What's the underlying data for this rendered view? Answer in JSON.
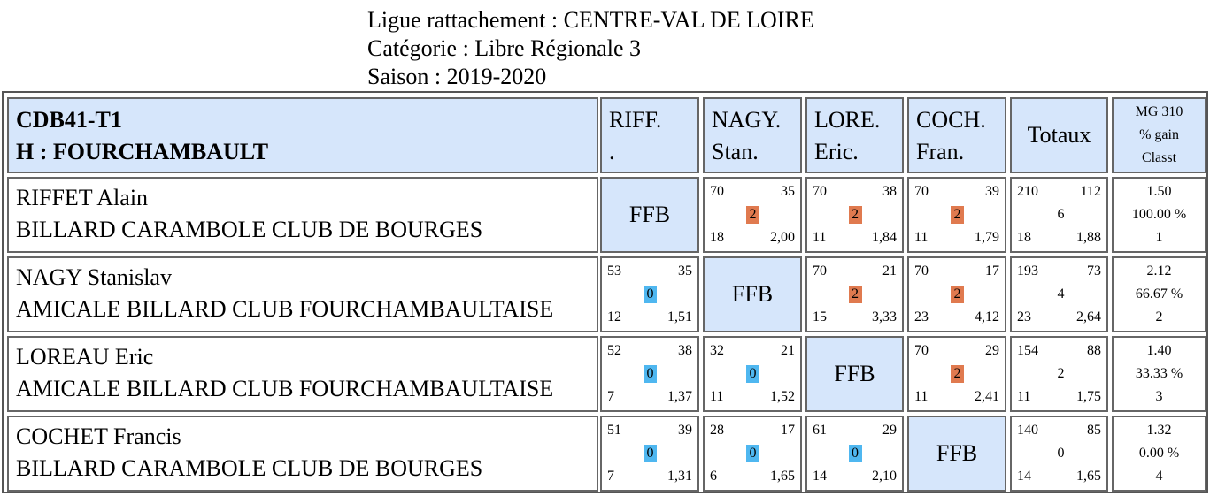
{
  "header": {
    "ligue": "Ligue rattachement : CENTRE-VAL DE LOIRE",
    "categorie": "Catégorie : Libre Régionale 3",
    "saison": "Saison : 2019-2020"
  },
  "table": {
    "team_code": "CDB41-T1",
    "team_name": "H : FOURCHAMBAULT",
    "columns": [
      {
        "line1": "RIFF.",
        "line2": "."
      },
      {
        "line1": "NAGY.",
        "line2": "Stan."
      },
      {
        "line1": "LORE.",
        "line2": "Eric."
      },
      {
        "line1": "COCH.",
        "line2": "Fran."
      }
    ],
    "totaux_label": "Totaux",
    "mg_label": "MG 310",
    "gain_label": "% gain",
    "classt_label": "Classt",
    "ffb_label": "FFB",
    "rows": [
      {
        "name": "RIFFET Alain",
        "club": "BILLARD CARAMBOLE CLUB DE BOURGES",
        "results": [
          null,
          {
            "pts": "70",
            "rep": "35",
            "mp": "2",
            "ser": "18",
            "avg": "2,00"
          },
          {
            "pts": "70",
            "rep": "38",
            "mp": "2",
            "ser": "11",
            "avg": "1,84"
          },
          {
            "pts": "70",
            "rep": "39",
            "mp": "2",
            "ser": "11",
            "avg": "1,79"
          }
        ],
        "totals": {
          "pts": "210",
          "rep": "112",
          "mp": "6",
          "ser": "18",
          "avg": "1,88"
        },
        "summary": {
          "mg": "1.50",
          "gain": "100.00 %",
          "classt": "1"
        }
      },
      {
        "name": "NAGY Stanislav",
        "club": "AMICALE BILLARD CLUB FOURCHAMBAULTAISE",
        "results": [
          {
            "pts": "53",
            "rep": "35",
            "mp": "0",
            "ser": "12",
            "avg": "1,51"
          },
          null,
          {
            "pts": "70",
            "rep": "21",
            "mp": "2",
            "ser": "15",
            "avg": "3,33"
          },
          {
            "pts": "70",
            "rep": "17",
            "mp": "2",
            "ser": "23",
            "avg": "4,12"
          }
        ],
        "totals": {
          "pts": "193",
          "rep": "73",
          "mp": "4",
          "ser": "23",
          "avg": "2,64"
        },
        "summary": {
          "mg": "2.12",
          "gain": "66.67 %",
          "classt": "2"
        }
      },
      {
        "name": "LOREAU Eric",
        "club": "AMICALE BILLARD CLUB FOURCHAMBAULTAISE",
        "results": [
          {
            "pts": "52",
            "rep": "38",
            "mp": "0",
            "ser": "7",
            "avg": "1,37"
          },
          {
            "pts": "32",
            "rep": "21",
            "mp": "0",
            "ser": "11",
            "avg": "1,52"
          },
          null,
          {
            "pts": "70",
            "rep": "29",
            "mp": "2",
            "ser": "11",
            "avg": "2,41"
          }
        ],
        "totals": {
          "pts": "154",
          "rep": "88",
          "mp": "2",
          "ser": "11",
          "avg": "1,75"
        },
        "summary": {
          "mg": "1.40",
          "gain": "33.33 %",
          "classt": "3"
        }
      },
      {
        "name": "COCHET Francis",
        "club": "BILLARD CARAMBOLE CLUB DE BOURGES",
        "results": [
          {
            "pts": "51",
            "rep": "39",
            "mp": "0",
            "ser": "7",
            "avg": "1,31"
          },
          {
            "pts": "28",
            "rep": "17",
            "mp": "0",
            "ser": "6",
            "avg": "1,65"
          },
          {
            "pts": "61",
            "rep": "29",
            "mp": "0",
            "ser": "14",
            "avg": "2,10"
          },
          null
        ],
        "totals": {
          "pts": "140",
          "rep": "85",
          "mp": "0",
          "ser": "14",
          "avg": "1,65"
        },
        "summary": {
          "mg": "1.32",
          "gain": "0.00 %",
          "classt": "4"
        }
      }
    ]
  },
  "colors": {
    "header_bg": "#d6e6fb",
    "win_badge": "#e07a4f",
    "loss_badge": "#4fb7f0"
  }
}
